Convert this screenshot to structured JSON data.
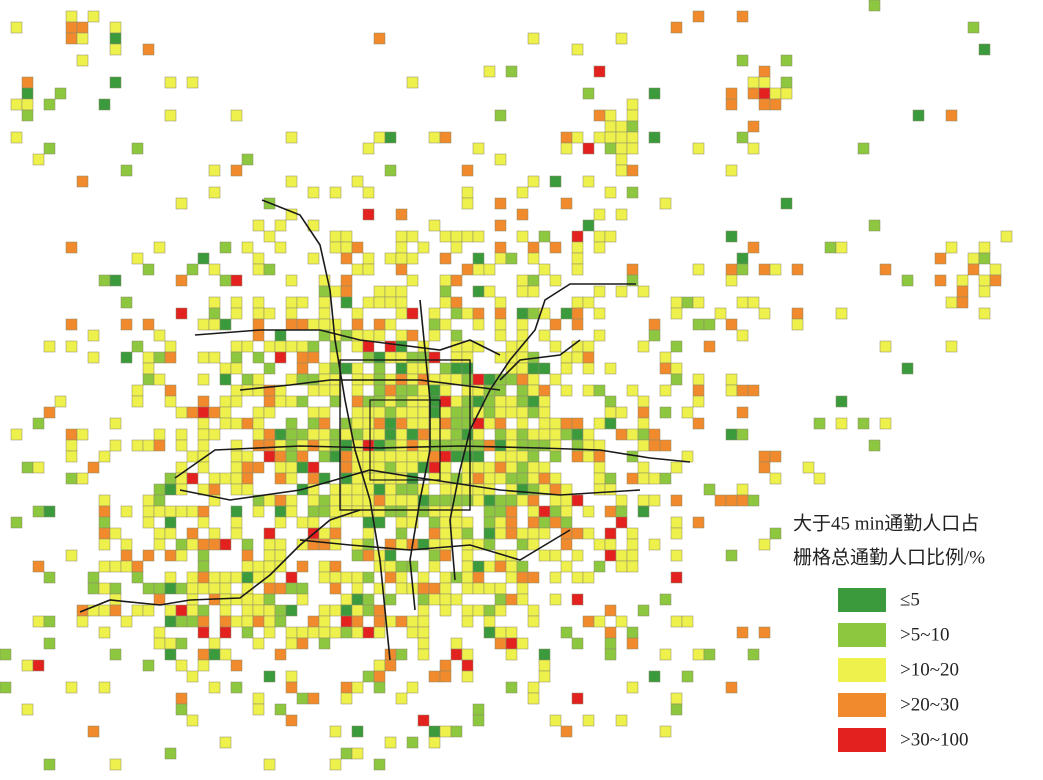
{
  "legend": {
    "title": [
      "大于45 min通勤人口占",
      "栅格总通勤人口比例/%"
    ],
    "items": [
      {
        "label": "≤5",
        "color": "#3a9a3c"
      },
      {
        "label": ">5~10",
        "color": "#8dc63f"
      },
      {
        "label": ">10~20",
        "color": "#eef04c"
      },
      {
        "label": ">20~30",
        "color": "#f08a2c"
      },
      {
        "label": ">30~100",
        "color": "#e3221f"
      }
    ]
  }
}
